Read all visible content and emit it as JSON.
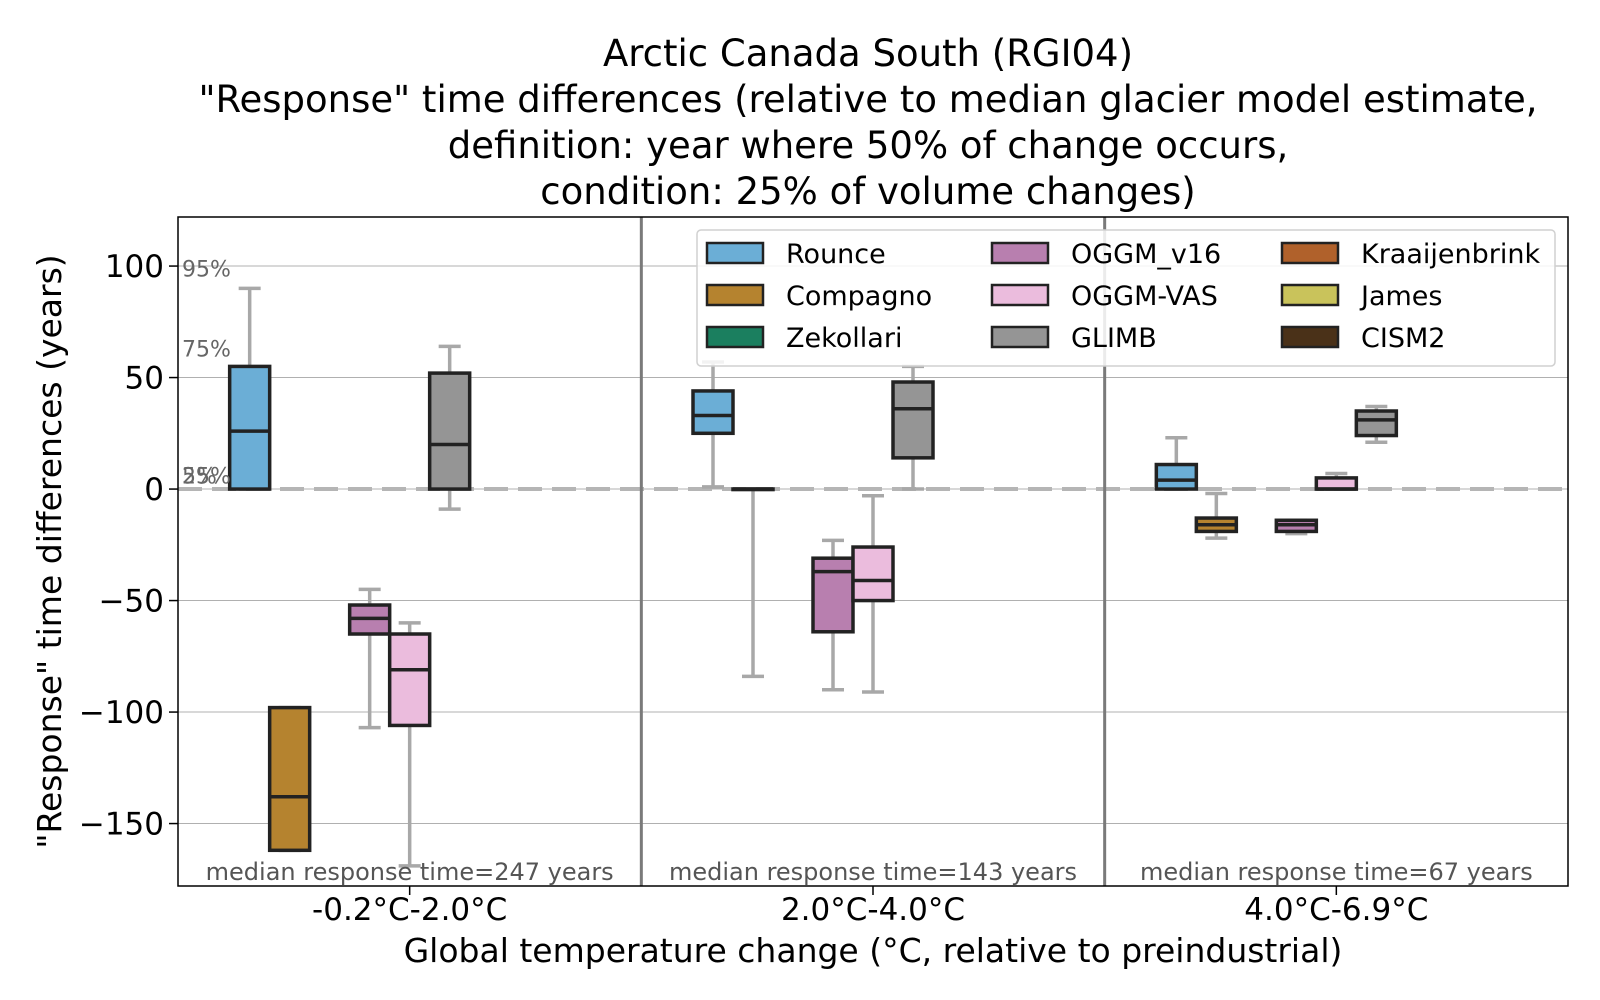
{
  "chart_data": {
    "type": "box",
    "title": [
      "Arctic Canada South (RGI04)",
      "\"Response\" time differences (relative to median glacier model estimate,",
      "definition: year where 50% of change occurs,",
      "condition: 25% of volume changes)"
    ],
    "xlabel": "Global temperature change (°C, relative to preindustrial)",
    "ylabel": "\"Response\" time differences (years)",
    "ylim": [
      -178,
      122
    ],
    "yticks": [
      100,
      50,
      0,
      -50,
      -100,
      -150
    ],
    "ytick_labels": [
      "100",
      "50",
      "0",
      "−50",
      "−100",
      "−150"
    ],
    "grid": true,
    "legend_position": "top-right",
    "percentile_labels": [
      "95%",
      "75%",
      "5%",
      "25%"
    ],
    "groups": [
      {
        "label": "-0.2°C-2.0°C",
        "annotation": "median response time=247 years"
      },
      {
        "label": "2.0°C-4.0°C",
        "annotation": "median response time=143 years"
      },
      {
        "label": "4.0°C-6.9°C",
        "annotation": "median response time=67 years"
      }
    ],
    "series": [
      {
        "name": "Rounce",
        "color": "#6baed6"
      },
      {
        "name": "Compagno",
        "color": "#b5832f"
      },
      {
        "name": "Zekollari",
        "color": "#1b7f5f"
      },
      {
        "name": "OGGM_v16",
        "color": "#b87faf"
      },
      {
        "name": "OGGM-VAS",
        "color": "#ebbcdd"
      },
      {
        "name": "GLIMB",
        "color": "#959595"
      },
      {
        "name": "Kraaijenbrink",
        "color": "#b0612b"
      },
      {
        "name": "James",
        "color": "#c9c35b"
      },
      {
        "name": "CISM2",
        "color": "#4a3118"
      }
    ],
    "boxes": [
      {
        "group": 0,
        "series": "Rounce",
        "slot": 0,
        "whisker_low": 0,
        "q1": 0,
        "median": 26,
        "q3": 55,
        "whisker_high": 90
      },
      {
        "group": 0,
        "series": "Compagno",
        "slot": 1,
        "whisker_low": -162,
        "q1": -162,
        "median": -138,
        "q3": -98,
        "whisker_high": -98
      },
      {
        "group": 0,
        "series": "OGGM_v16",
        "slot": 3,
        "whisker_low": -107,
        "q1": -65,
        "median": -58,
        "q3": -52,
        "whisker_high": -45
      },
      {
        "group": 0,
        "series": "OGGM-VAS",
        "slot": 4,
        "whisker_low": -169,
        "q1": -106,
        "median": -81,
        "q3": -65,
        "whisker_high": -60
      },
      {
        "group": 0,
        "series": "GLIMB",
        "slot": 5,
        "whisker_low": -9,
        "q1": 0,
        "median": 20,
        "q3": 52,
        "whisker_high": 64
      },
      {
        "group": 1,
        "series": "Rounce",
        "slot": 0,
        "whisker_low": 1,
        "q1": 25,
        "median": 33,
        "q3": 44,
        "whisker_high": 57
      },
      {
        "group": 1,
        "series": "Compagno",
        "slot": 1,
        "whisker_low": -84,
        "q1": 0,
        "median": 0,
        "q3": 0,
        "whisker_high": 0
      },
      {
        "group": 1,
        "series": "OGGM_v16",
        "slot": 3,
        "whisker_low": -90,
        "q1": -64,
        "median": -37,
        "q3": -31,
        "whisker_high": -23
      },
      {
        "group": 1,
        "series": "OGGM-VAS",
        "slot": 4,
        "whisker_low": -91,
        "q1": -50,
        "median": -41,
        "q3": -26,
        "whisker_high": -3
      },
      {
        "group": 1,
        "series": "GLIMB",
        "slot": 5,
        "whisker_low": 0,
        "q1": 14,
        "median": 36,
        "q3": 48,
        "whisker_high": 55
      },
      {
        "group": 2,
        "series": "Rounce",
        "slot": 0,
        "whisker_low": 0,
        "q1": 0,
        "median": 4,
        "q3": 11,
        "whisker_high": 23
      },
      {
        "group": 2,
        "series": "Compagno",
        "slot": 1,
        "whisker_low": -22,
        "q1": -19,
        "median": -16,
        "q3": -13,
        "whisker_high": -2
      },
      {
        "group": 2,
        "series": "OGGM_v16",
        "slot": 3,
        "whisker_low": -20,
        "q1": -19,
        "median": -16,
        "q3": -14,
        "whisker_high": -14
      },
      {
        "group": 2,
        "series": "OGGM-VAS",
        "slot": 4,
        "whisker_low": 0,
        "q1": 0,
        "median": 0,
        "q3": 5,
        "whisker_high": 7
      },
      {
        "group": 2,
        "series": "GLIMB",
        "slot": 5,
        "whisker_low": 21,
        "q1": 24,
        "median": 31,
        "q3": 35,
        "whisker_high": 37
      }
    ]
  }
}
